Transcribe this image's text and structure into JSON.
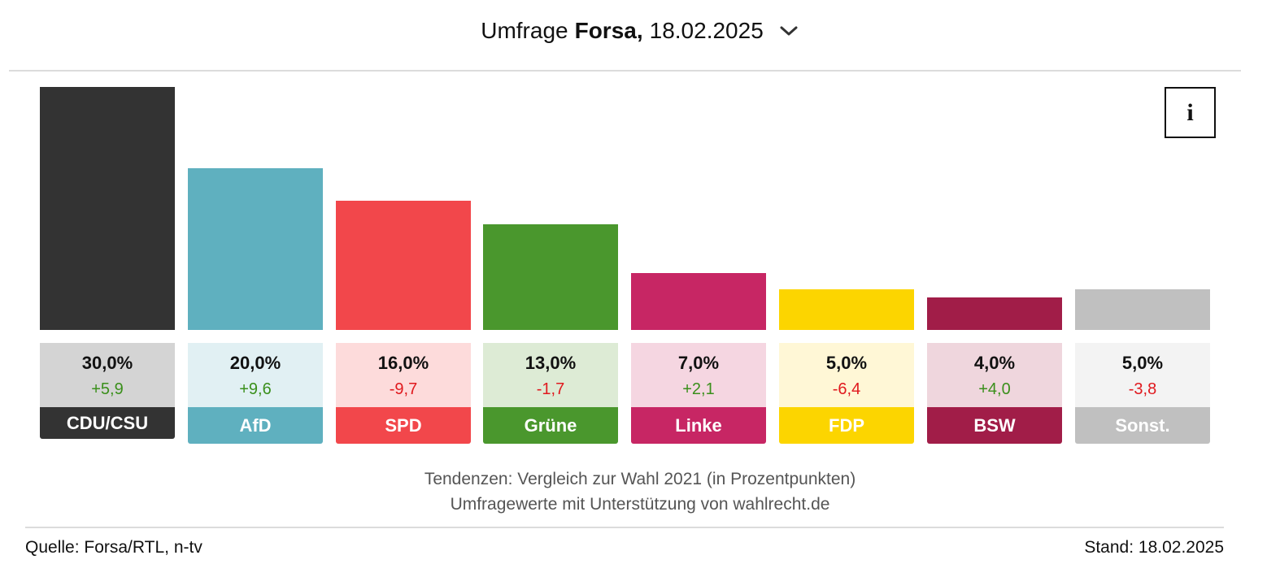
{
  "header": {
    "title_prefix": "Umfrage",
    "institute": "Forsa,",
    "date": "18.02.2025",
    "dropdown_icon": "chevron-down-icon"
  },
  "info_button": {
    "label": "i",
    "icon": "info-icon"
  },
  "chart_data": {
    "type": "bar",
    "title": "Umfrage Forsa, 18.02.2025",
    "categories": [
      "CDU/CSU",
      "AfD",
      "SPD",
      "Grüne",
      "Linke",
      "FDP",
      "BSW",
      "Sonst."
    ],
    "values": [
      30.0,
      20.0,
      16.0,
      13.0,
      7.0,
      5.0,
      4.0,
      5.0
    ],
    "value_labels": [
      "30,0%",
      "20,0%",
      "16,0%",
      "13,0%",
      "7,0%",
      "5,0%",
      "4,0%",
      "5,0%"
    ],
    "diffs": [
      5.9,
      9.6,
      -9.7,
      -1.7,
      2.1,
      -6.4,
      4.0,
      -3.8
    ],
    "diff_labels": [
      "+5,9",
      "+9,6",
      "-9,7",
      "-1,7",
      "+2,1",
      "-6,4",
      "+4,0",
      "-3,8"
    ],
    "colors": [
      "#333333",
      "#5fb0bf",
      "#f2474b",
      "#4a972d",
      "#c72664",
      "#fcd500",
      "#a11d48",
      "#c0c0c0"
    ],
    "light_colors": [
      "#d4d4d4",
      "#e1f0f3",
      "#fddbdb",
      "#ddebd5",
      "#f5d6e1",
      "#fff7d6",
      "#efd6dd",
      "#f3f3f3"
    ],
    "positive_color": "#3a8f1b",
    "negative_color": "#e0191e",
    "ylim": [
      0,
      30
    ],
    "xlabel": "",
    "ylabel": "",
    "grid": false
  },
  "footer": {
    "note_line1": "Tendenzen: Vergleich zur Wahl 2021 (in Prozentpunkten)",
    "note_line2": "Umfragewerte mit Unterstützung von wahlrecht.de",
    "source": "Quelle: Forsa/RTL, n-tv",
    "stand": "Stand: 18.02.2025"
  }
}
